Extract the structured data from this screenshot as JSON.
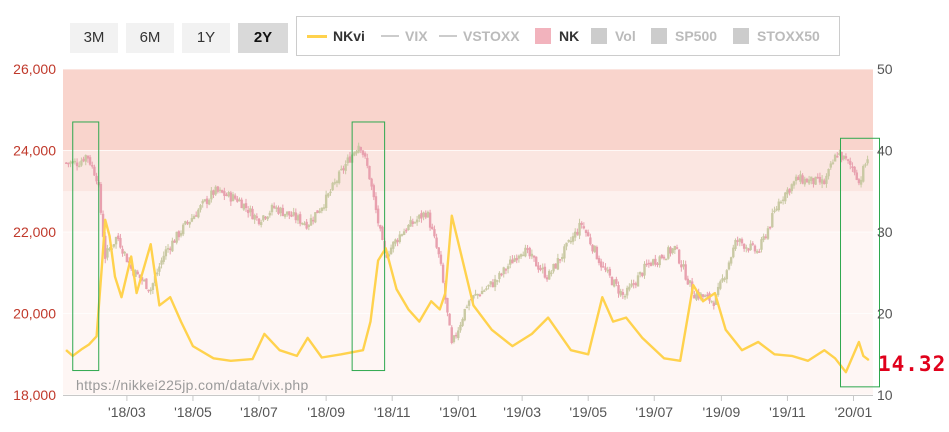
{
  "range_selector": {
    "buttons": [
      {
        "label": "3M",
        "active": false
      },
      {
        "label": "6M",
        "active": false
      },
      {
        "label": "1Y",
        "active": false
      },
      {
        "label": "2Y",
        "active": true
      }
    ]
  },
  "legend": {
    "items": [
      {
        "label": "NKvi",
        "symbol": "line",
        "color": "#ffd24d",
        "active": true
      },
      {
        "label": "VIX",
        "symbol": "line",
        "color": "#cccccc",
        "active": false
      },
      {
        "label": "VSTOXX",
        "symbol": "line",
        "color": "#cccccc",
        "active": false
      },
      {
        "label": "NK",
        "symbol": "box",
        "color": "#f2b3bd",
        "active": true
      },
      {
        "label": "Vol",
        "symbol": "box",
        "color": "#cccccc",
        "active": false
      },
      {
        "label": "SP500",
        "symbol": "box",
        "color": "#cccccc",
        "active": false
      },
      {
        "label": "STOXX50",
        "symbol": "box",
        "color": "#cccccc",
        "active": false
      }
    ]
  },
  "last_value_label": "14.32",
  "watermark": "https://nikkei225jp.com/data/vix.php",
  "colors": {
    "nkvi_line": "#ffd24d",
    "candle_up": "#c9c9a3",
    "candle_down": "#e8a0ae",
    "left_axis_text": "#c0392b",
    "right_axis_text": "#555555",
    "highlight_box": "#2ea84e",
    "band_top": "#f9d4cc",
    "band_mid": "#fbe6e1",
    "band_light": "#fdf1ee",
    "band_lower": "#fef6f4",
    "last_value": "#e0001b"
  },
  "chart_data": {
    "type": "line",
    "x_tick_labels": [
      "'18/03",
      "'18/05",
      "'18/07",
      "'18/09",
      "'18/11",
      "'19/01",
      "'19/03",
      "'19/05",
      "'19/07",
      "'19/09",
      "'19/11",
      "'20/01"
    ],
    "y_left": {
      "ticks": [
        18000,
        20000,
        22000,
        24000,
        26000
      ],
      "tick_labels": [
        "18,000",
        "20,000",
        "22,000",
        "24,000",
        "26,000"
      ],
      "range": [
        18000,
        26000
      ],
      "series": "NK"
    },
    "y_right": {
      "ticks": [
        10,
        20,
        30,
        40,
        50
      ],
      "range": [
        10,
        50
      ],
      "series": "NKvi"
    },
    "background_bands_right_axis": [
      [
        10,
        30,
        "band_lower"
      ],
      [
        30,
        35,
        "band_light"
      ],
      [
        35,
        40,
        "band_mid"
      ],
      [
        40,
        50,
        "band_top"
      ]
    ],
    "nk_trend": [
      {
        "x": "2018-01-15",
        "y": 23700
      },
      {
        "x": "2018-01-23",
        "y": 23900
      },
      {
        "x": "2018-02-02",
        "y": 23300
      },
      {
        "x": "2018-02-09",
        "y": 21400
      },
      {
        "x": "2018-02-20",
        "y": 21900
      },
      {
        "x": "2018-03-05",
        "y": 21100
      },
      {
        "x": "2018-03-23",
        "y": 20600
      },
      {
        "x": "2018-04-05",
        "y": 21500
      },
      {
        "x": "2018-04-25",
        "y": 22200
      },
      {
        "x": "2018-05-21",
        "y": 23000
      },
      {
        "x": "2018-06-12",
        "y": 22800
      },
      {
        "x": "2018-06-30",
        "y": 22300
      },
      {
        "x": "2018-07-15",
        "y": 22600
      },
      {
        "x": "2018-08-15",
        "y": 22200
      },
      {
        "x": "2018-09-01",
        "y": 22800
      },
      {
        "x": "2018-09-20",
        "y": 23700
      },
      {
        "x": "2018-10-02",
        "y": 24200
      },
      {
        "x": "2018-10-10",
        "y": 23500
      },
      {
        "x": "2018-10-25",
        "y": 21400
      },
      {
        "x": "2018-11-10",
        "y": 22000
      },
      {
        "x": "2018-12-03",
        "y": 22500
      },
      {
        "x": "2018-12-15",
        "y": 21300
      },
      {
        "x": "2018-12-26",
        "y": 19200
      },
      {
        "x": "2019-01-10",
        "y": 20300
      },
      {
        "x": "2019-02-05",
        "y": 20800
      },
      {
        "x": "2019-03-01",
        "y": 21600
      },
      {
        "x": "2019-03-25",
        "y": 20900
      },
      {
        "x": "2019-04-25",
        "y": 22200
      },
      {
        "x": "2019-05-15",
        "y": 21100
      },
      {
        "x": "2019-06-03",
        "y": 20400
      },
      {
        "x": "2019-06-25",
        "y": 21200
      },
      {
        "x": "2019-07-20",
        "y": 21600
      },
      {
        "x": "2019-08-06",
        "y": 20500
      },
      {
        "x": "2019-08-26",
        "y": 20300
      },
      {
        "x": "2019-09-15",
        "y": 21800
      },
      {
        "x": "2019-10-05",
        "y": 21500
      },
      {
        "x": "2019-10-25",
        "y": 22800
      },
      {
        "x": "2019-11-10",
        "y": 23300
      },
      {
        "x": "2019-12-05",
        "y": 23200
      },
      {
        "x": "2019-12-17",
        "y": 23950
      },
      {
        "x": "2020-01-03",
        "y": 23500
      },
      {
        "x": "2020-01-06",
        "y": 23200
      },
      {
        "x": "2020-01-15",
        "y": 23900
      }
    ],
    "series": [
      {
        "name": "NKvi",
        "axis": "right",
        "color": "#ffd24d",
        "points": [
          {
            "x": "2018-01-04",
            "y": 15.5
          },
          {
            "x": "2018-01-10",
            "y": 14.8
          },
          {
            "x": "2018-01-18",
            "y": 15.6
          },
          {
            "x": "2018-01-25",
            "y": 16.2
          },
          {
            "x": "2018-02-01",
            "y": 17.2
          },
          {
            "x": "2018-02-06",
            "y": 26.0
          },
          {
            "x": "2018-02-09",
            "y": 31.5
          },
          {
            "x": "2018-02-13",
            "y": 29.5
          },
          {
            "x": "2018-02-18",
            "y": 24.5
          },
          {
            "x": "2018-02-24",
            "y": 22.0
          },
          {
            "x": "2018-03-05",
            "y": 27.0
          },
          {
            "x": "2018-03-10",
            "y": 22.5
          },
          {
            "x": "2018-03-23",
            "y": 28.5
          },
          {
            "x": "2018-03-31",
            "y": 21.0
          },
          {
            "x": "2018-04-10",
            "y": 22.0
          },
          {
            "x": "2018-04-20",
            "y": 19.0
          },
          {
            "x": "2018-05-01",
            "y": 16.0
          },
          {
            "x": "2018-05-20",
            "y": 14.5
          },
          {
            "x": "2018-06-05",
            "y": 14.2
          },
          {
            "x": "2018-06-25",
            "y": 14.4
          },
          {
            "x": "2018-07-06",
            "y": 17.5
          },
          {
            "x": "2018-07-20",
            "y": 15.5
          },
          {
            "x": "2018-08-05",
            "y": 14.8
          },
          {
            "x": "2018-08-15",
            "y": 17.0
          },
          {
            "x": "2018-08-28",
            "y": 14.6
          },
          {
            "x": "2018-09-15",
            "y": 15.0
          },
          {
            "x": "2018-10-05",
            "y": 15.5
          },
          {
            "x": "2018-10-12",
            "y": 19.0
          },
          {
            "x": "2018-10-19",
            "y": 26.5
          },
          {
            "x": "2018-10-26",
            "y": 28.0
          },
          {
            "x": "2018-11-05",
            "y": 23.0
          },
          {
            "x": "2018-11-16",
            "y": 20.5
          },
          {
            "x": "2018-11-26",
            "y": 19.0
          },
          {
            "x": "2018-12-07",
            "y": 21.5
          },
          {
            "x": "2018-12-15",
            "y": 20.5
          },
          {
            "x": "2018-12-20",
            "y": 22.5
          },
          {
            "x": "2018-12-26",
            "y": 32.0
          },
          {
            "x": "2019-01-05",
            "y": 26.5
          },
          {
            "x": "2019-01-15",
            "y": 21.0
          },
          {
            "x": "2019-02-01",
            "y": 18.0
          },
          {
            "x": "2019-02-20",
            "y": 16.0
          },
          {
            "x": "2019-03-10",
            "y": 17.5
          },
          {
            "x": "2019-03-25",
            "y": 19.5
          },
          {
            "x": "2019-04-15",
            "y": 15.5
          },
          {
            "x": "2019-05-01",
            "y": 15.0
          },
          {
            "x": "2019-05-14",
            "y": 22.0
          },
          {
            "x": "2019-05-24",
            "y": 19.0
          },
          {
            "x": "2019-06-05",
            "y": 19.5
          },
          {
            "x": "2019-06-20",
            "y": 17.0
          },
          {
            "x": "2019-07-10",
            "y": 14.5
          },
          {
            "x": "2019-07-25",
            "y": 14.2
          },
          {
            "x": "2019-08-06",
            "y": 23.5
          },
          {
            "x": "2019-08-15",
            "y": 21.5
          },
          {
            "x": "2019-08-26",
            "y": 22.5
          },
          {
            "x": "2019-09-05",
            "y": 18.0
          },
          {
            "x": "2019-09-20",
            "y": 15.5
          },
          {
            "x": "2019-10-05",
            "y": 16.5
          },
          {
            "x": "2019-10-20",
            "y": 15.0
          },
          {
            "x": "2019-11-05",
            "y": 14.8
          },
          {
            "x": "2019-11-20",
            "y": 14.2
          },
          {
            "x": "2019-12-05",
            "y": 15.5
          },
          {
            "x": "2019-12-15",
            "y": 14.5
          },
          {
            "x": "2019-12-25",
            "y": 12.8
          },
          {
            "x": "2020-01-06",
            "y": 16.5
          },
          {
            "x": "2020-01-10",
            "y": 14.8
          },
          {
            "x": "2020-01-15",
            "y": 14.3
          }
        ]
      }
    ],
    "highlight_boxes": [
      {
        "x_start": "2018-01-10",
        "x_end": "2018-02-03",
        "y_top": 43.5,
        "y_bottom": 13.0
      },
      {
        "x_start": "2018-09-25",
        "x_end": "2018-10-25",
        "y_top": 43.5,
        "y_bottom": 13.0
      },
      {
        "x_start": "2019-12-20",
        "x_end": "2020-01-25",
        "y_top": 41.5,
        "y_bottom": 11.0
      }
    ],
    "last_value": 14.32,
    "grid": true
  }
}
